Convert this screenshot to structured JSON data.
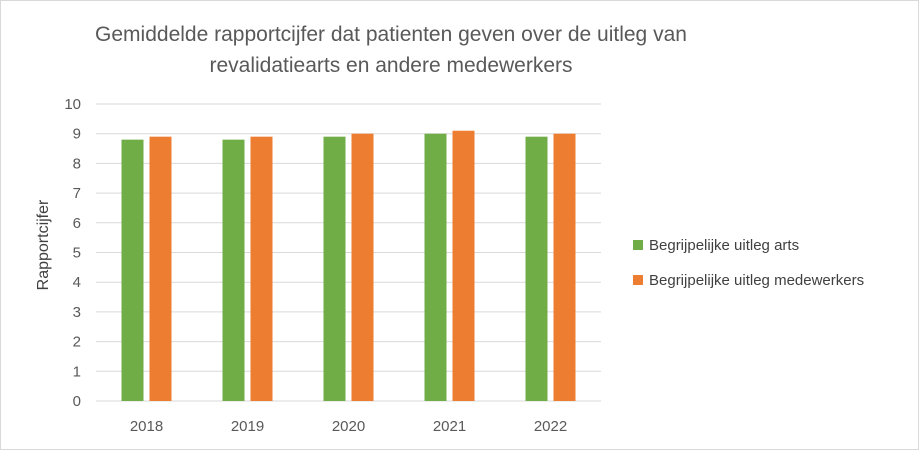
{
  "chart_data": {
    "type": "bar",
    "title": "Gemiddelde rapportcijfer dat patienten geven over de uitleg van revalidatiearts en andere medewerkers",
    "xlabel": "",
    "ylabel": "Rapportcijfer",
    "categories": [
      "2018",
      "2019",
      "2020",
      "2021",
      "2022"
    ],
    "series": [
      {
        "name": "Begrijpelijke uitleg arts",
        "color": "#70ad47",
        "values": [
          8.8,
          8.8,
          8.9,
          9.0,
          8.9
        ]
      },
      {
        "name": "Begrijpelijke uitleg medewerkers",
        "color": "#ed7d31",
        "values": [
          8.9,
          8.9,
          9.0,
          9.1,
          9.0
        ]
      }
    ],
    "ylim": [
      0,
      10
    ],
    "yticks": [
      "0",
      "1",
      "2",
      "3",
      "4",
      "5",
      "6",
      "7",
      "8",
      "9",
      "10"
    ],
    "grid": true,
    "legend_position": "right"
  }
}
